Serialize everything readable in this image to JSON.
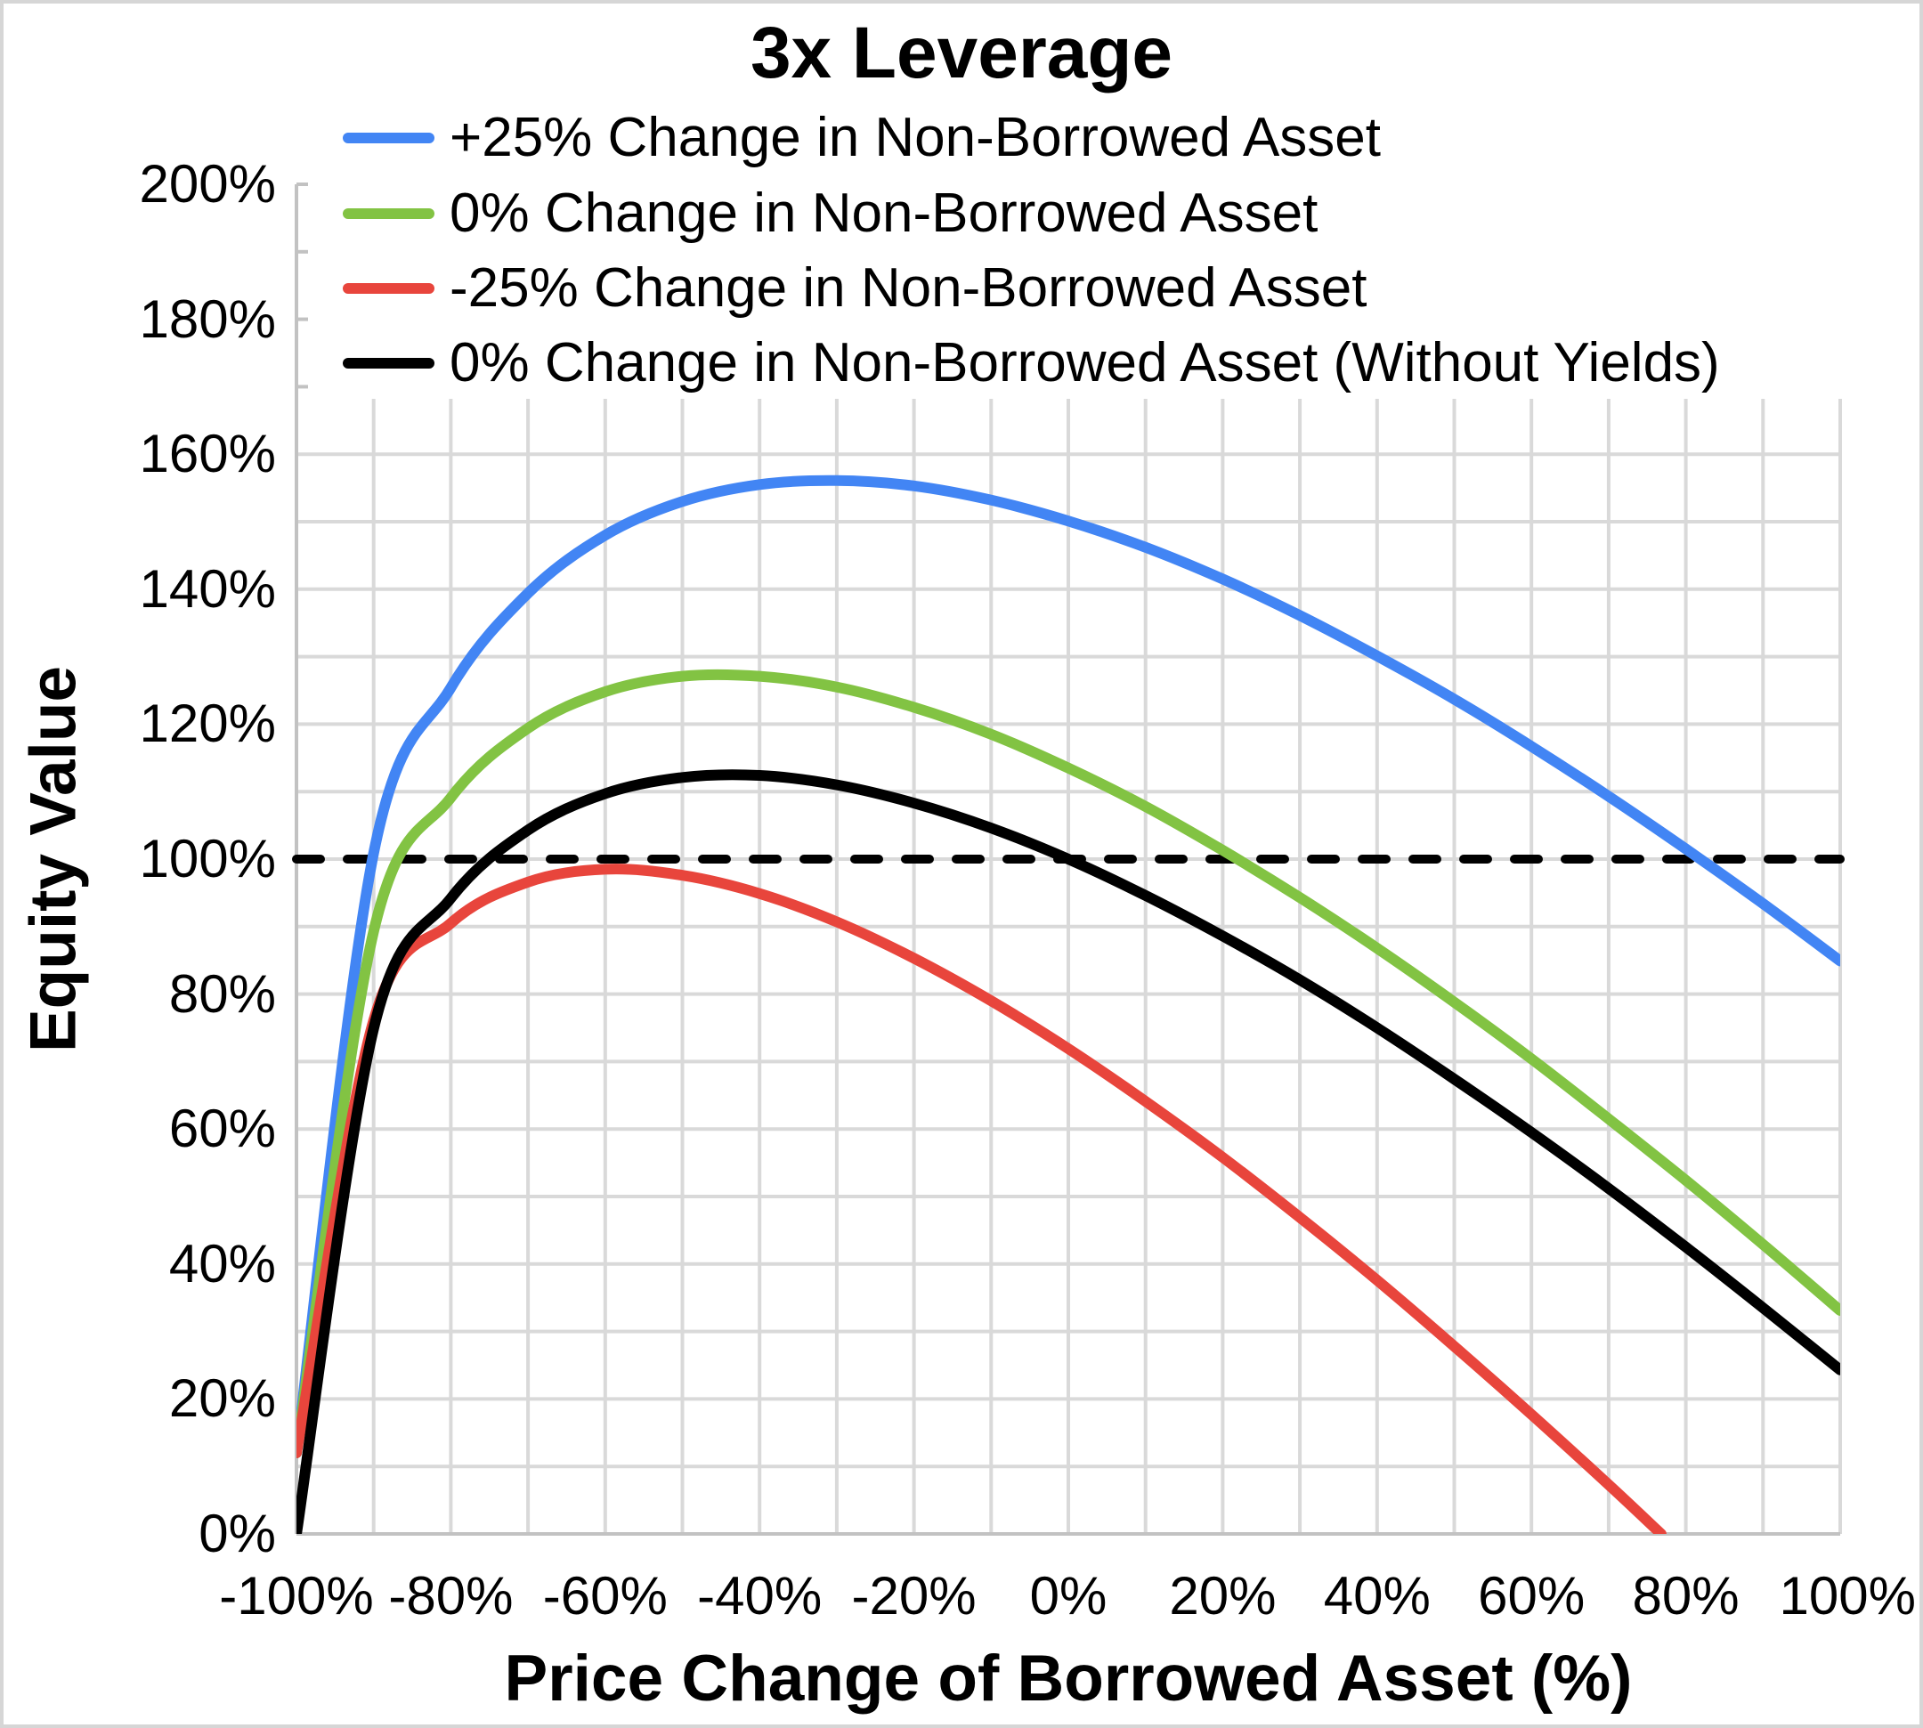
{
  "title": "3x Leverage",
  "y_axis": {
    "title": "Equity Value",
    "min": 0,
    "max": 200,
    "major_step": 20,
    "minor_grid_step": 10,
    "ticks": [
      {
        "value": 200,
        "label": "200%"
      },
      {
        "value": 180,
        "label": "180%"
      },
      {
        "value": 160,
        "label": "160%"
      },
      {
        "value": 140,
        "label": "140%"
      },
      {
        "value": 120,
        "label": "120%"
      },
      {
        "value": 100,
        "label": "100%"
      },
      {
        "value": 80,
        "label": "80%"
      },
      {
        "value": 60,
        "label": "60%"
      },
      {
        "value": 40,
        "label": "40%"
      },
      {
        "value": 20,
        "label": "20%"
      },
      {
        "value": 0,
        "label": "0%"
      }
    ]
  },
  "x_axis": {
    "title": "Price Change of Borrowed Asset (%)",
    "min": -100,
    "max": 100,
    "major_step": 20,
    "minor_grid_step": 10,
    "ticks": [
      {
        "value": -100,
        "label": "-100%"
      },
      {
        "value": -80,
        "label": "-80%"
      },
      {
        "value": -60,
        "label": "-60%"
      },
      {
        "value": -40,
        "label": "-40%"
      },
      {
        "value": -20,
        "label": "-20%"
      },
      {
        "value": 0,
        "label": "0%"
      },
      {
        "value": 20,
        "label": "20%"
      },
      {
        "value": 40,
        "label": "40%"
      },
      {
        "value": 60,
        "label": "60%"
      },
      {
        "value": 80,
        "label": "80%"
      },
      {
        "value": 100,
        "label": "100%"
      }
    ]
  },
  "reference_line": {
    "value": 100,
    "style": "dashed",
    "color": "#000000"
  },
  "legend": [
    {
      "label": "+25% Change in Non-Borrowed Asset",
      "color": "#4285F4",
      "series": "plus25"
    },
    {
      "label": "0% Change in Non-Borrowed Asset",
      "color": "#82C343",
      "series": "zero"
    },
    {
      "label": "-25% Change in Non-Borrowed Asset",
      "color": "#E8453C",
      "series": "minus25"
    },
    {
      "label": "0% Change in Non-Borrowed Asset (Without Yields)",
      "color": "#000000",
      "series": "zero_no_yields"
    }
  ],
  "colors": {
    "background": "#FFFFFF",
    "border": "#D6D6D6",
    "gridline": "#D9D9D9",
    "axis_line": "#C2C2C2",
    "text": "#000000"
  },
  "chart_data": {
    "type": "line",
    "title": "3x Leverage",
    "xlabel": "Price Change of Borrowed Asset (%)",
    "ylabel": "Equity Value",
    "xlim": [
      -100,
      100
    ],
    "ylim": [
      0,
      200
    ],
    "grid": true,
    "legend_position": "inside-top-left",
    "units": "percent",
    "reference_line_y": 100,
    "series": [
      {
        "name": "+25% Change in Non-Borrowed Asset",
        "color": "#4285F4",
        "points": [
          [
            -100,
            12
          ],
          [
            -90,
            100.9
          ],
          [
            -80,
            125.4
          ],
          [
            -70,
            139.4
          ],
          [
            -60,
            148.0
          ],
          [
            -50,
            153.0
          ],
          [
            -40,
            155.5
          ],
          [
            -30,
            156.1
          ],
          [
            -20,
            155.3
          ],
          [
            -10,
            153.2
          ],
          [
            0,
            150.1
          ],
          [
            10,
            146.2
          ],
          [
            20,
            141.5
          ],
          [
            30,
            136.1
          ],
          [
            40,
            130.1
          ],
          [
            50,
            123.7
          ],
          [
            60,
            116.7
          ],
          [
            70,
            109.3
          ],
          [
            80,
            101.5
          ],
          [
            90,
            93.4
          ],
          [
            100,
            84.9
          ]
        ]
      },
      {
        "name": "0% Change in Non-Borrowed Asset",
        "color": "#82C343",
        "points": [
          [
            -100,
            12
          ],
          [
            -90,
            89.3
          ],
          [
            -80,
            109.1
          ],
          [
            -70,
            119.4
          ],
          [
            -60,
            124.8
          ],
          [
            -50,
            127.1
          ],
          [
            -40,
            127.1
          ],
          [
            -30,
            125.5
          ],
          [
            -20,
            122.5
          ],
          [
            -10,
            118.5
          ],
          [
            0,
            113.5
          ],
          [
            10,
            107.8
          ],
          [
            20,
            101.3
          ],
          [
            30,
            94.3
          ],
          [
            40,
            86.8
          ],
          [
            50,
            78.8
          ],
          [
            60,
            70.4
          ],
          [
            70,
            61.5
          ],
          [
            80,
            52.4
          ],
          [
            90,
            42.9
          ],
          [
            100,
            33.1
          ]
        ]
      },
      {
        "name": "-25% Change in Non-Borrowed Asset",
        "color": "#E8453C",
        "points": [
          [
            -100,
            12
          ],
          [
            -90,
            76.1
          ],
          [
            -80,
            90.5
          ],
          [
            -70,
            96.6
          ],
          [
            -60,
            98.5
          ],
          [
            -50,
            97.6
          ],
          [
            -40,
            94.9
          ],
          [
            -30,
            90.7
          ],
          [
            -20,
            85.3
          ],
          [
            -10,
            79.0
          ],
          [
            0,
            71.9
          ],
          [
            10,
            64.1
          ],
          [
            20,
            55.8
          ],
          [
            30,
            46.9
          ],
          [
            40,
            37.6
          ],
          [
            50,
            27.8
          ],
          [
            60,
            17.7
          ],
          [
            70,
            7.3
          ],
          [
            76.8,
            0
          ]
        ]
      },
      {
        "name": "0% Change in Non-Borrowed Asset (Without Yields)",
        "color": "#000000",
        "points": [
          [
            -100,
            0
          ],
          [
            -90,
            74.9
          ],
          [
            -80,
            94.2
          ],
          [
            -70,
            104.3
          ],
          [
            -60,
            109.7
          ],
          [
            -50,
            112.1
          ],
          [
            -40,
            112.4
          ],
          [
            -30,
            111.0
          ],
          [
            -20,
            108.3
          ],
          [
            -10,
            104.6
          ],
          [
            0,
            100.0
          ],
          [
            10,
            94.6
          ],
          [
            20,
            88.6
          ],
          [
            30,
            82.1
          ],
          [
            40,
            75.0
          ],
          [
            50,
            67.4
          ],
          [
            60,
            59.5
          ],
          [
            70,
            51.2
          ],
          [
            80,
            42.5
          ],
          [
            90,
            33.5
          ],
          [
            100,
            24.3
          ]
        ]
      }
    ]
  }
}
